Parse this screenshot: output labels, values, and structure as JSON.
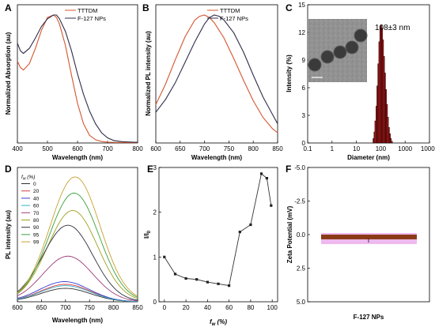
{
  "chart_data": [
    {
      "panel": "A",
      "type": "line",
      "xlabel": "Wavelength (nm)",
      "ylabel": "Normalized Absorption (au)",
      "xlim": [
        400,
        800
      ],
      "x_ticks": [
        "400",
        "500",
        "600",
        "700",
        "800"
      ],
      "ylim": [
        0,
        1.08
      ],
      "legend_position": "top-right",
      "series": [
        {
          "name": "TTTDM",
          "color": "#d4552e",
          "x": [
            400,
            410,
            420,
            440,
            460,
            480,
            500,
            520,
            530,
            540,
            560,
            580,
            600,
            620,
            640,
            660,
            680,
            700,
            750,
            800
          ],
          "y": [
            0.64,
            0.59,
            0.57,
            0.62,
            0.74,
            0.88,
            0.98,
            1.0,
            0.98,
            0.93,
            0.76,
            0.53,
            0.31,
            0.15,
            0.06,
            0.025,
            0.012,
            0.006,
            0.003,
            0.002
          ]
        },
        {
          "name": "F-127 NPs",
          "color": "#2e2e4a",
          "x": [
            400,
            410,
            420,
            440,
            460,
            480,
            500,
            520,
            530,
            540,
            560,
            580,
            600,
            620,
            640,
            660,
            680,
            700,
            720,
            750,
            800
          ],
          "y": [
            0.78,
            0.72,
            0.7,
            0.74,
            0.82,
            0.91,
            0.97,
            1.0,
            1.0,
            0.97,
            0.87,
            0.72,
            0.54,
            0.38,
            0.25,
            0.15,
            0.08,
            0.04,
            0.02,
            0.01,
            0.005
          ]
        }
      ]
    },
    {
      "panel": "B",
      "type": "line",
      "xlabel": "Wavelength (nm)",
      "ylabel": "Normalized PL intensity (au)",
      "xlim": [
        600,
        850
      ],
      "x_ticks": [
        "600",
        "650",
        "700",
        "750",
        "800",
        "850"
      ],
      "ylim": [
        0,
        1.08
      ],
      "legend_position": "top-right",
      "series": [
        {
          "name": "TTTDM",
          "color": "#d4552e",
          "x": [
            600,
            620,
            640,
            660,
            680,
            690,
            700,
            710,
            720,
            740,
            760,
            780,
            800,
            820,
            840,
            850
          ],
          "y": [
            0.3,
            0.46,
            0.65,
            0.83,
            0.96,
            0.99,
            1.0,
            0.98,
            0.94,
            0.82,
            0.66,
            0.49,
            0.33,
            0.2,
            0.11,
            0.08
          ]
        },
        {
          "name": "F-127 NPs",
          "color": "#2e2e4a",
          "x": [
            600,
            620,
            640,
            660,
            680,
            700,
            710,
            720,
            730,
            740,
            760,
            780,
            800,
            820,
            840,
            850
          ],
          "y": [
            0.24,
            0.34,
            0.47,
            0.63,
            0.79,
            0.93,
            0.98,
            1.0,
            0.99,
            0.96,
            0.86,
            0.71,
            0.53,
            0.36,
            0.22,
            0.15
          ]
        }
      ]
    },
    {
      "panel": "C",
      "type": "bar",
      "xlabel": "Diameter (nm)",
      "ylabel": "Intensity (%)",
      "x_scale": "log",
      "xlim": [
        0.1,
        10000
      ],
      "x_ticks": [
        "0.1",
        "1",
        "10",
        "100",
        "1000",
        "10000"
      ],
      "ylim": [
        0,
        15
      ],
      "y_ticks": [
        "0",
        "3",
        "6",
        "9",
        "12",
        "15"
      ],
      "annotation": "108±3 nm",
      "bar_color": "#b01818",
      "x": [
        50,
        55,
        60,
        66,
        72,
        79,
        87,
        95,
        104,
        114,
        125,
        137,
        150,
        165,
        181,
        198,
        218,
        239,
        262,
        288
      ],
      "values": [
        0.5,
        1.2,
        2.4,
        4.0,
        6.2,
        8.6,
        11.0,
        12.6,
        12.8,
        12.5,
        11.2,
        9.4,
        7.6,
        5.8,
        4.2,
        2.8,
        1.7,
        1.0,
        0.5,
        0.2
      ]
    },
    {
      "panel": "D",
      "type": "line",
      "xlabel": "Wavelength (nm)",
      "ylabel": "PL intensity (au)",
      "xlim": [
        600,
        850
      ],
      "x_ticks": [
        "600",
        "650",
        "700",
        "750",
        "800",
        "850"
      ],
      "legend_title": "fw (%)",
      "legend_position": "top-left",
      "series": [
        {
          "name": "0",
          "color": "#303030",
          "peak": 700,
          "amplitude": 0.1
        },
        {
          "name": "20",
          "color": "#d43c3c",
          "peak": 700,
          "amplitude": 0.13
        },
        {
          "name": "40",
          "color": "#3a3ad4",
          "peak": 698,
          "amplitude": 0.15
        },
        {
          "name": "60",
          "color": "#3ab0c8",
          "peak": 700,
          "amplitude": 0.12
        },
        {
          "name": "70",
          "color": "#a03a7a",
          "peak": 705,
          "amplitude": 0.34
        },
        {
          "name": "80",
          "color": "#a0a020",
          "peak": 715,
          "amplitude": 0.68
        },
        {
          "name": "90",
          "color": "#303040",
          "peak": 705,
          "amplitude": 0.57
        },
        {
          "name": "95",
          "color": "#3aa03a",
          "peak": 718,
          "amplitude": 0.81
        },
        {
          "name": "99",
          "color": "#c8a030",
          "peak": 720,
          "amplitude": 0.93
        }
      ]
    },
    {
      "panel": "E",
      "type": "line",
      "xlabel": "fw (%)",
      "ylabel": "I/I0",
      "xlim": [
        -5,
        105
      ],
      "x_ticks": [
        "0",
        "20",
        "40",
        "60",
        "80",
        "100"
      ],
      "ylim": [
        0,
        3
      ],
      "y_ticks": [
        "0",
        "1",
        "2",
        "3"
      ],
      "series": [
        {
          "name": "",
          "color": "#333333",
          "x": [
            0,
            10,
            20,
            30,
            40,
            50,
            60,
            70,
            80,
            90,
            95,
            99
          ],
          "y": [
            1.0,
            0.62,
            0.52,
            0.5,
            0.44,
            0.4,
            0.36,
            1.56,
            1.72,
            2.86,
            2.76,
            2.15
          ]
        }
      ]
    },
    {
      "panel": "F",
      "type": "bar",
      "xlabel": "F-127 NPs",
      "ylabel": "Zeta Potential (mV)",
      "ylim": [
        5.0,
        -5.0
      ],
      "y_ticks": [
        "-5.0",
        "-2.5",
        "0.0",
        "2.5",
        "5.0"
      ],
      "categories": [
        "F-127 NPs"
      ],
      "values": [
        0.35
      ],
      "bar_color": "#8b3a16",
      "error_color": "#e080e0"
    }
  ]
}
